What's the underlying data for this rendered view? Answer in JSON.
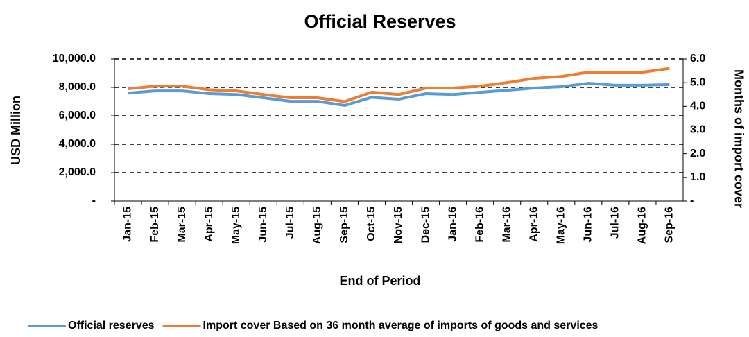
{
  "chart_data": {
    "type": "line",
    "title": "Official Reserves",
    "x_label": "End of Period",
    "y_label": "USD Million",
    "y2_label": "Months of import cover",
    "categories": [
      "Jan-15",
      "Feb-15",
      "Mar-15",
      "Apr-15",
      "May-15",
      "Jun-15",
      "Jul-15",
      "Aug-15",
      "Sep-15",
      "Oct-15",
      "Nov-15",
      "Dec-15",
      "Jan-16",
      "Feb-16",
      "Mar-16",
      "Apr-16",
      "May-16",
      "Jun-16",
      "Jul-16",
      "Aug-16",
      "Sep-16"
    ],
    "series": [
      {
        "name": "Official reserves",
        "color": "#5b9bd5",
        "axis": "y",
        "values": [
          7600,
          7750,
          7750,
          7560,
          7500,
          7270,
          7020,
          7020,
          6730,
          7300,
          7170,
          7560,
          7500,
          7650,
          7800,
          7950,
          8050,
          8290,
          8150,
          8150,
          8200
        ]
      },
      {
        "name": "Import cover Based on 36 month average of imports of goods and services",
        "color": "#ed7d31",
        "axis": "y2",
        "values": [
          4.74,
          4.85,
          4.85,
          4.7,
          4.65,
          4.5,
          4.36,
          4.36,
          4.2,
          4.6,
          4.5,
          4.77,
          4.77,
          4.85,
          5.0,
          5.18,
          5.26,
          5.44,
          5.44,
          5.44,
          5.6
        ]
      }
    ],
    "ylim": [
      0,
      10000
    ],
    "yticks": [
      {
        "value": 0,
        "label": "-"
      },
      {
        "value": 2000,
        "label": "2,000.0"
      },
      {
        "value": 4000,
        "label": "4,000.0"
      },
      {
        "value": 6000,
        "label": "6,000.0"
      },
      {
        "value": 8000,
        "label": "8,000.0"
      },
      {
        "value": 10000,
        "label": "10,000.0"
      }
    ],
    "y2lim": [
      0,
      6
    ],
    "y2ticks": [
      {
        "value": 0,
        "label": "-"
      },
      {
        "value": 1,
        "label": "1.0"
      },
      {
        "value": 2,
        "label": "2.0"
      },
      {
        "value": 3,
        "label": "3.0"
      },
      {
        "value": 4,
        "label": "4.0"
      },
      {
        "value": 5,
        "label": "5.0"
      },
      {
        "value": 6,
        "label": "6.0"
      }
    ],
    "grid": true,
    "legend": "bottom"
  }
}
